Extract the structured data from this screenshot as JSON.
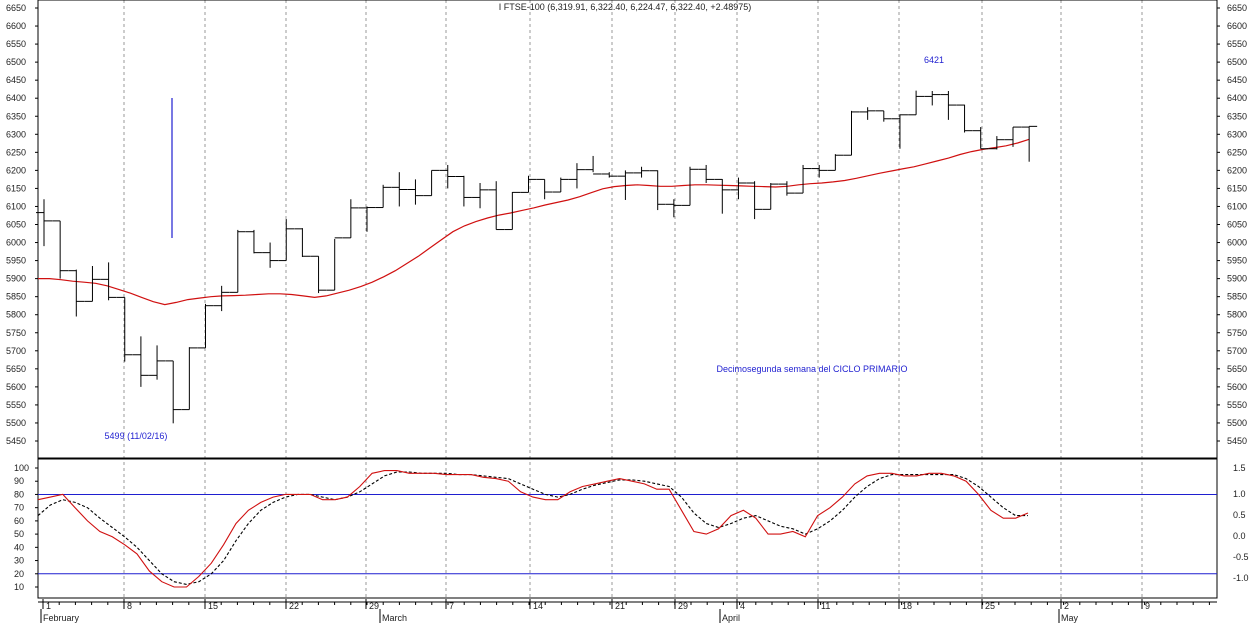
{
  "chart_data": {
    "type": "ohlc",
    "title": "I FTSE-100 (6,319.91, 6,322.40, 6,224.47, 6,322.40, +2.48975)",
    "annotations": {
      "high_label": "6421",
      "low_label": "5499 (11/02/16)",
      "cycle_note": "Decimosegunda semana del CICLO PRIMARIO"
    },
    "price_axis": {
      "min": 5400,
      "max": 6675,
      "ticks": [
        6650,
        6600,
        6550,
        6500,
        6450,
        6400,
        6350,
        6300,
        6250,
        6200,
        6150,
        6100,
        6050,
        6000,
        5950,
        5900,
        5850,
        5800,
        5750,
        5700,
        5650,
        5600,
        5550,
        5500,
        5450
      ]
    },
    "osc_left_axis": {
      "min": -5,
      "max": 112,
      "ticks": [
        100,
        90,
        80,
        70,
        60,
        50,
        40,
        30,
        20,
        10
      ]
    },
    "osc_right_axis": {
      "ticks": [
        "1.5",
        "1.0",
        "0.5",
        "0.0",
        "-0.5",
        "-1.0"
      ]
    },
    "osc_levels": [
      80,
      20
    ],
    "x_labels": {
      "days": [
        "1",
        "8",
        "15",
        "22",
        "29",
        "7",
        "14",
        "21",
        "29",
        "4",
        "11",
        "18",
        "25",
        "2",
        "9"
      ],
      "months": [
        "February",
        "March",
        "April",
        "May"
      ]
    },
    "bars": [
      {
        "date": "2016-02-01",
        "o": 6083,
        "h": 6120,
        "l": 5990,
        "c": 6060
      },
      {
        "date": "2016-02-02",
        "o": 6060,
        "h": 6060,
        "l": 5900,
        "c": 5922
      },
      {
        "date": "2016-02-03",
        "o": 5922,
        "h": 5925,
        "l": 5795,
        "c": 5837
      },
      {
        "date": "2016-02-04",
        "o": 5837,
        "h": 5935,
        "l": 5837,
        "c": 5898
      },
      {
        "date": "2016-02-05",
        "o": 5898,
        "h": 5945,
        "l": 5840,
        "c": 5848
      },
      {
        "date": "2016-02-08",
        "o": 5848,
        "h": 5848,
        "l": 5670,
        "c": 5689
      },
      {
        "date": "2016-02-09",
        "o": 5689,
        "h": 5740,
        "l": 5600,
        "c": 5632
      },
      {
        "date": "2016-02-10",
        "o": 5632,
        "h": 5715,
        "l": 5620,
        "c": 5672
      },
      {
        "date": "2016-02-11",
        "o": 5672,
        "h": 5672,
        "l": 5499,
        "c": 5537
      },
      {
        "date": "2016-02-12",
        "o": 5537,
        "h": 5710,
        "l": 5537,
        "c": 5708
      },
      {
        "date": "2016-02-15",
        "o": 5708,
        "h": 5830,
        "l": 5708,
        "c": 5825
      },
      {
        "date": "2016-02-16",
        "o": 5825,
        "h": 5880,
        "l": 5810,
        "c": 5862
      },
      {
        "date": "2016-02-17",
        "o": 5862,
        "h": 6035,
        "l": 5862,
        "c": 6030
      },
      {
        "date": "2016-02-18",
        "o": 6030,
        "h": 6035,
        "l": 5970,
        "c": 5972
      },
      {
        "date": "2016-02-19",
        "o": 5972,
        "h": 6000,
        "l": 5930,
        "c": 5950
      },
      {
        "date": "2016-02-22",
        "o": 5950,
        "h": 6065,
        "l": 5950,
        "c": 6038
      },
      {
        "date": "2016-02-23",
        "o": 6038,
        "h": 6040,
        "l": 5960,
        "c": 5962
      },
      {
        "date": "2016-02-24",
        "o": 5962,
        "h": 5962,
        "l": 5860,
        "c": 5868
      },
      {
        "date": "2016-02-25",
        "o": 5868,
        "h": 6010,
        "l": 5868,
        "c": 6013
      },
      {
        "date": "2016-02-26",
        "o": 6013,
        "h": 6120,
        "l": 6013,
        "c": 6096
      },
      {
        "date": "2016-02-29",
        "o": 6096,
        "h": 6100,
        "l": 6030,
        "c": 6097
      },
      {
        "date": "2016-03-01",
        "o": 6097,
        "h": 6160,
        "l": 6097,
        "c": 6153
      },
      {
        "date": "2016-03-02",
        "o": 6153,
        "h": 6195,
        "l": 6100,
        "c": 6147
      },
      {
        "date": "2016-03-03",
        "o": 6147,
        "h": 6175,
        "l": 6105,
        "c": 6130
      },
      {
        "date": "2016-03-04",
        "o": 6130,
        "h": 6200,
        "l": 6130,
        "c": 6200
      },
      {
        "date": "2016-03-07",
        "o": 6200,
        "h": 6215,
        "l": 6150,
        "c": 6183
      },
      {
        "date": "2016-03-08",
        "o": 6183,
        "h": 6185,
        "l": 6100,
        "c": 6125
      },
      {
        "date": "2016-03-09",
        "o": 6125,
        "h": 6165,
        "l": 6095,
        "c": 6146
      },
      {
        "date": "2016-03-10",
        "o": 6146,
        "h": 6170,
        "l": 6036,
        "c": 6036
      },
      {
        "date": "2016-03-11",
        "o": 6036,
        "h": 6140,
        "l": 6036,
        "c": 6139
      },
      {
        "date": "2016-03-14",
        "o": 6139,
        "h": 6185,
        "l": 6139,
        "c": 6175
      },
      {
        "date": "2016-03-15",
        "o": 6175,
        "h": 6175,
        "l": 6120,
        "c": 6140
      },
      {
        "date": "2016-03-16",
        "o": 6140,
        "h": 6180,
        "l": 6140,
        "c": 6175
      },
      {
        "date": "2016-03-17",
        "o": 6175,
        "h": 6220,
        "l": 6150,
        "c": 6202
      },
      {
        "date": "2016-03-18",
        "o": 6202,
        "h": 6240,
        "l": 6195,
        "c": 6190
      },
      {
        "date": "2016-03-21",
        "o": 6190,
        "h": 6195,
        "l": 6180,
        "c": 6184
      },
      {
        "date": "2016-03-22",
        "o": 6184,
        "h": 6200,
        "l": 6118,
        "c": 6193
      },
      {
        "date": "2016-03-23",
        "o": 6193,
        "h": 6210,
        "l": 6180,
        "c": 6199
      },
      {
        "date": "2016-03-24",
        "o": 6199,
        "h": 6200,
        "l": 6090,
        "c": 6106
      },
      {
        "date": "2016-03-29",
        "o": 6106,
        "h": 6120,
        "l": 6070,
        "c": 6103
      },
      {
        "date": "2016-03-30",
        "o": 6103,
        "h": 6210,
        "l": 6103,
        "c": 6203
      },
      {
        "date": "2016-03-31",
        "o": 6203,
        "h": 6215,
        "l": 6165,
        "c": 6175
      },
      {
        "date": "2016-04-01",
        "o": 6175,
        "h": 6176,
        "l": 6080,
        "c": 6146
      },
      {
        "date": "2016-04-04",
        "o": 6146,
        "h": 6180,
        "l": 6120,
        "c": 6165
      },
      {
        "date": "2016-04-05",
        "o": 6165,
        "h": 6170,
        "l": 6065,
        "c": 6092
      },
      {
        "date": "2016-04-06",
        "o": 6092,
        "h": 6165,
        "l": 6092,
        "c": 6162
      },
      {
        "date": "2016-04-07",
        "o": 6162,
        "h": 6170,
        "l": 6130,
        "c": 6137
      },
      {
        "date": "2016-04-08",
        "o": 6137,
        "h": 6215,
        "l": 6137,
        "c": 6205
      },
      {
        "date": "2016-04-11",
        "o": 6205,
        "h": 6215,
        "l": 6180,
        "c": 6200
      },
      {
        "date": "2016-04-12",
        "o": 6200,
        "h": 6245,
        "l": 6200,
        "c": 6242
      },
      {
        "date": "2016-04-13",
        "o": 6242,
        "h": 6365,
        "l": 6242,
        "c": 6362
      },
      {
        "date": "2016-04-14",
        "o": 6362,
        "h": 6375,
        "l": 6340,
        "c": 6365
      },
      {
        "date": "2016-04-15",
        "o": 6365,
        "h": 6365,
        "l": 6335,
        "c": 6343
      },
      {
        "date": "2016-04-18",
        "o": 6343,
        "h": 6355,
        "l": 6260,
        "c": 6354
      },
      {
        "date": "2016-04-19",
        "o": 6354,
        "h": 6421,
        "l": 6354,
        "c": 6405
      },
      {
        "date": "2016-04-20",
        "o": 6405,
        "h": 6420,
        "l": 6380,
        "c": 6410
      },
      {
        "date": "2016-04-21",
        "o": 6410,
        "h": 6420,
        "l": 6340,
        "c": 6381
      },
      {
        "date": "2016-04-22",
        "o": 6381,
        "h": 6382,
        "l": 6305,
        "c": 6310
      },
      {
        "date": "2016-04-25",
        "o": 6310,
        "h": 6320,
        "l": 6260,
        "c": 6260
      },
      {
        "date": "2016-04-26",
        "o": 6260,
        "h": 6295,
        "l": 6258,
        "c": 6285
      },
      {
        "date": "2016-04-27",
        "o": 6285,
        "h": 6320,
        "l": 6265,
        "c": 6320
      },
      {
        "date": "2016-04-28",
        "o": 6320,
        "h": 6322,
        "l": 6224,
        "c": 6322
      }
    ],
    "moving_average": [
      5900,
      5900,
      5897,
      5893,
      5890,
      5887,
      5880,
      5870,
      5860,
      5848,
      5836,
      5828,
      5834,
      5842,
      5846,
      5850,
      5852,
      5853,
      5854,
      5856,
      5858,
      5858,
      5856,
      5852,
      5848,
      5852,
      5860,
      5868,
      5878,
      5890,
      5905,
      5922,
      5942,
      5962,
      5985,
      6008,
      6030,
      6046,
      6058,
      6068,
      6076,
      6082,
      6089,
      6096,
      6104,
      6111,
      6118,
      6127,
      6138,
      6149,
      6155,
      6158,
      6160,
      6158,
      6156,
      6156,
      6158,
      6160,
      6160,
      6159,
      6158,
      6157,
      6156,
      6155,
      6154,
      6156,
      6160,
      6163,
      6165,
      6168,
      6172,
      6178,
      6185,
      6192,
      6198,
      6204,
      6210,
      6218,
      6226,
      6234,
      6244,
      6252,
      6258,
      6263,
      6268,
      6276,
      6286
    ],
    "stoch_k": [
      76,
      78,
      80,
      70,
      60,
      52,
      48,
      42,
      35,
      22,
      14,
      10,
      10,
      18,
      28,
      42,
      58,
      68,
      74,
      78,
      80,
      80,
      80,
      76,
      76,
      78,
      86,
      96,
      98,
      98,
      96,
      96,
      96,
      95,
      95,
      95,
      93,
      92,
      90,
      82,
      78,
      76,
      76,
      82,
      86,
      88,
      90,
      92,
      90,
      88,
      84,
      84,
      68,
      52,
      50,
      54,
      64,
      68,
      62,
      50,
      50,
      52,
      48,
      64,
      70,
      78,
      88,
      94,
      96,
      96,
      94,
      94,
      96,
      96,
      94,
      90,
      80,
      68,
      62,
      62,
      66
    ],
    "stoch_d": [
      64,
      72,
      76,
      74,
      70,
      62,
      55,
      48,
      40,
      30,
      20,
      14,
      12,
      14,
      20,
      30,
      45,
      58,
      68,
      74,
      78,
      80,
      80,
      78,
      76,
      78,
      82,
      88,
      94,
      97,
      97,
      96,
      96,
      96,
      95,
      95,
      94,
      93,
      92,
      88,
      84,
      80,
      78,
      80,
      84,
      87,
      89,
      91,
      91,
      90,
      88,
      86,
      78,
      66,
      58,
      55,
      58,
      62,
      64,
      60,
      56,
      54,
      50,
      54,
      60,
      68,
      78,
      86,
      92,
      95,
      95,
      95,
      95,
      95,
      95,
      92,
      86,
      78,
      70,
      64,
      64
    ]
  }
}
